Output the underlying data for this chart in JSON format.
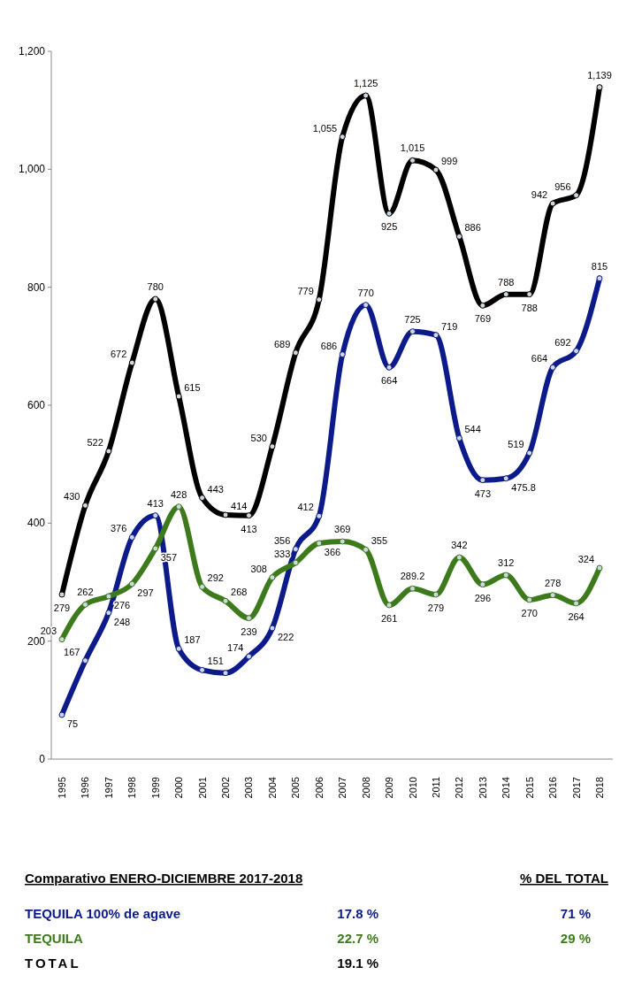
{
  "chart_data": {
    "type": "line",
    "subtitle": "Comparativo ENERO-DICIEMBRE 2017-2018",
    "categories": [
      "1995",
      "1996",
      "1997",
      "1998",
      "1999",
      "2000",
      "2001",
      "2002",
      "2003",
      "2004",
      "2005",
      "2006",
      "2007",
      "2008",
      "2009",
      "2010",
      "2011",
      "2012",
      "2013",
      "2014",
      "2015",
      "2016",
      "2017",
      "2018"
    ],
    "series": [
      {
        "name": "TEQUILA 100% de agave",
        "color": "#0c1a8a",
        "values": [
          75,
          167,
          248,
          376,
          413,
          187,
          151,
          146,
          174,
          222,
          356,
          412,
          686,
          770,
          664,
          725,
          719,
          544,
          473,
          475.8,
          519,
          664,
          692,
          815
        ],
        "value_labels": [
          "75",
          "167",
          "248",
          "376",
          "413",
          "187",
          "151",
          null,
          "174",
          "222",
          "356",
          "412",
          "686",
          "770",
          "664",
          "725",
          "719",
          "544",
          "473",
          "475.8",
          "519",
          "664",
          "692",
          "815"
        ]
      },
      {
        "name": "TEQUILA",
        "color": "#3d7a1c",
        "values": [
          203,
          262,
          276,
          297,
          357,
          428,
          292,
          268,
          239,
          308,
          333,
          366,
          369,
          355,
          261,
          289.2,
          279,
          342,
          296,
          312,
          270,
          278,
          264,
          324
        ],
        "value_labels": [
          "203",
          "262",
          "276",
          "297",
          "357",
          "428",
          "292",
          "268",
          "239",
          "308",
          "333",
          "366",
          "369",
          "355",
          "261",
          "289.2",
          "279",
          "342",
          "296",
          "312",
          "270",
          "278",
          "264",
          "324"
        ]
      },
      {
        "name": "TOTAL",
        "color": "#000000",
        "values": [
          279,
          430,
          522,
          672,
          780,
          615,
          443,
          414,
          413,
          530,
          689,
          779,
          1055,
          1125,
          925,
          1015,
          999,
          886,
          769,
          788,
          788,
          942,
          956,
          1139
        ],
        "value_labels": [
          "279",
          "430",
          "522",
          "672",
          "780",
          "615",
          "443",
          "414",
          "413",
          "530",
          "689",
          "779",
          "1,055",
          "1,125",
          "925",
          "1,015",
          "999",
          "886",
          "769",
          "788",
          "788",
          "942",
          "956",
          "1,139"
        ]
      }
    ],
    "ylim": [
      0,
      1200
    ],
    "yticks": [
      0,
      200,
      400,
      600,
      800,
      {
        "value": 1000,
        "label": "1,000"
      },
      {
        "value": 1200,
        "label": "1,200"
      }
    ],
    "grid": false,
    "legend": "bottom",
    "marker": "circle",
    "line_style": "solid",
    "annotations": [
      "% DEL TOTAL",
      "17.8 %",
      "22.7 %",
      "19.1 %",
      "71 %",
      "29 %"
    ]
  }
}
